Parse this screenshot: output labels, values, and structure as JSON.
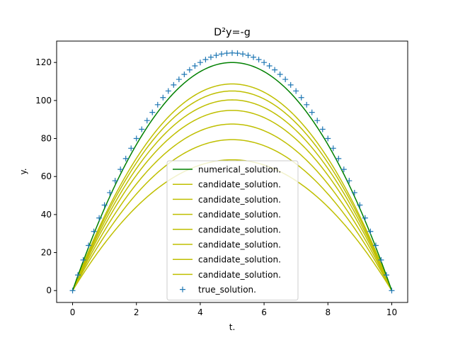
{
  "chart_data": {
    "type": "line",
    "title": "D²y=-g",
    "xlabel": "t.",
    "ylabel": "y.",
    "xlim": [
      -0.5,
      10.5
    ],
    "ylim": [
      -6.25,
      131.25
    ],
    "xticks": [
      0,
      2,
      4,
      6,
      8,
      10
    ],
    "yticks": [
      0,
      20,
      40,
      60,
      80,
      100,
      120
    ],
    "grid": false,
    "legend_position": "lower-center",
    "colors": {
      "numerical": "#008000",
      "candidate": "#bfbf00",
      "true": "#1f77b4"
    },
    "series": [
      {
        "name": "numerical_solution.",
        "kind": "line",
        "color": "#008000",
        "t_range": [
          0,
          10
        ],
        "peak": 120.0
      },
      {
        "name": "candidate_solution.",
        "kind": "line",
        "color": "#bfbf00",
        "t_range": [
          0,
          10
        ],
        "peak": 108.7
      },
      {
        "name": "candidate_solution.",
        "kind": "line",
        "color": "#bfbf00",
        "t_range": [
          0,
          10
        ],
        "peak": 105.0
      },
      {
        "name": "candidate_solution.",
        "kind": "line",
        "color": "#bfbf00",
        "t_range": [
          0,
          10
        ],
        "peak": 100.3
      },
      {
        "name": "candidate_solution.",
        "kind": "line",
        "color": "#bfbf00",
        "t_range": [
          0,
          10
        ],
        "peak": 94.8
      },
      {
        "name": "candidate_solution.",
        "kind": "line",
        "color": "#bfbf00",
        "t_range": [
          0,
          10
        ],
        "peak": 87.6
      },
      {
        "name": "candidate_solution.",
        "kind": "line",
        "color": "#bfbf00",
        "t_range": [
          0,
          10
        ],
        "peak": 79.4
      },
      {
        "name": "candidate_solution.",
        "kind": "line",
        "color": "#bfbf00",
        "t_range": [
          0,
          10
        ],
        "peak": 68.8
      },
      {
        "name": "true_solution.",
        "kind": "marker",
        "marker": "+",
        "color": "#1f77b4",
        "t_range": [
          0,
          10
        ],
        "peak": 125.0,
        "points": 61
      }
    ]
  }
}
